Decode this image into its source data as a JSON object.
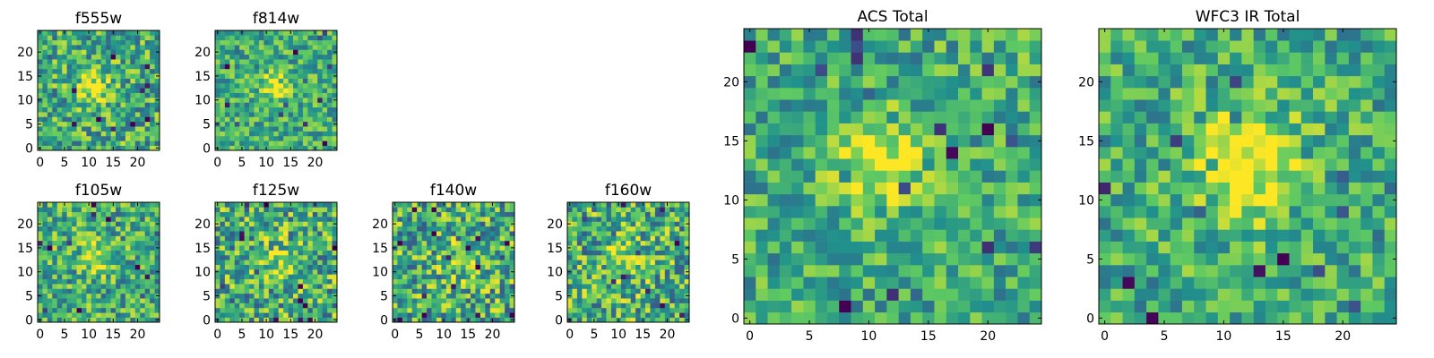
{
  "colormap": {
    "name": "viridis",
    "stops": [
      "#440154",
      "#3b528b",
      "#21918c",
      "#5ec962",
      "#fde725"
    ]
  },
  "chart_data": [
    {
      "type": "heatmap",
      "title": "f555w",
      "xlim": [
        0,
        24
      ],
      "ylim": [
        0,
        24
      ],
      "xticks": [
        "0",
        "5",
        "10",
        "15",
        "20"
      ],
      "yticks": [
        "0",
        "5",
        "10",
        "15",
        "20"
      ],
      "grid": false,
      "source_size": 25,
      "peak_center": [
        11,
        13
      ],
      "peak_sigma": 2.5,
      "peak_strength": 0.3,
      "noise_level": 0.3
    },
    {
      "type": "heatmap",
      "title": "f814w",
      "xlim": [
        0,
        24
      ],
      "ylim": [
        0,
        24
      ],
      "xticks": [
        "0",
        "5",
        "10",
        "15",
        "20"
      ],
      "yticks": [
        "0",
        "5",
        "10",
        "15",
        "20"
      ],
      "grid": false,
      "source_size": 25,
      "peak_center": [
        12,
        13
      ],
      "peak_sigma": 2.0,
      "peak_strength": 0.4,
      "noise_level": 0.25
    },
    {
      "type": "heatmap",
      "title": "f105w",
      "xlim": [
        0,
        24
      ],
      "ylim": [
        0,
        24
      ],
      "xticks": [
        "0",
        "5",
        "10",
        "15",
        "20"
      ],
      "yticks": [
        "0",
        "5",
        "10",
        "15",
        "20"
      ],
      "grid": false,
      "source_size": 25,
      "peak_center": [
        12,
        13
      ],
      "peak_sigma": 2.5,
      "peak_strength": 0.3,
      "noise_level": 0.3
    },
    {
      "type": "heatmap",
      "title": "f125w",
      "xlim": [
        0,
        24
      ],
      "ylim": [
        0,
        24
      ],
      "xticks": [
        "0",
        "5",
        "10",
        "15",
        "20"
      ],
      "yticks": [
        "0",
        "5",
        "10",
        "15",
        "20"
      ],
      "grid": false,
      "source_size": 25,
      "peak_center": [
        13,
        12
      ],
      "peak_sigma": 3.0,
      "peak_strength": 0.2,
      "noise_level": 0.35
    },
    {
      "type": "heatmap",
      "title": "f140w",
      "xlim": [
        0,
        24
      ],
      "ylim": [
        0,
        24
      ],
      "xticks": [
        "0",
        "5",
        "10",
        "15",
        "20"
      ],
      "yticks": [
        "0",
        "5",
        "10",
        "15",
        "20"
      ],
      "grid": false,
      "source_size": 25,
      "peak_center": [
        13,
        12
      ],
      "peak_sigma": 3.0,
      "peak_strength": 0.2,
      "noise_level": 0.35
    },
    {
      "type": "heatmap",
      "title": "f160w",
      "xlim": [
        0,
        24
      ],
      "ylim": [
        0,
        24
      ],
      "xticks": [
        "0",
        "5",
        "10",
        "15",
        "20"
      ],
      "yticks": [
        "0",
        "5",
        "10",
        "15",
        "20"
      ],
      "grid": false,
      "source_size": 25,
      "peak_center": [
        12,
        12
      ],
      "peak_sigma": 3.0,
      "peak_strength": 0.3,
      "noise_level": 0.35
    },
    {
      "type": "heatmap",
      "title": "ACS Total",
      "xlim": [
        0,
        24
      ],
      "ylim": [
        0,
        24
      ],
      "xticks": [
        "0",
        "5",
        "10",
        "15",
        "20"
      ],
      "yticks": [
        "0",
        "5",
        "10",
        "15",
        "20"
      ],
      "grid": false,
      "source_size": 25,
      "peak_center": [
        11,
        13
      ],
      "peak_sigma": 2.5,
      "peak_strength": 0.4,
      "noise_level": 0.25
    },
    {
      "type": "heatmap",
      "title": "WFC3 IR Total",
      "xlim": [
        0,
        24
      ],
      "ylim": [
        0,
        24
      ],
      "xticks": [
        "0",
        "5",
        "10",
        "15",
        "20"
      ],
      "yticks": [
        "0",
        "5",
        "10",
        "15",
        "20"
      ],
      "grid": false,
      "source_size": 25,
      "peak_center": [
        12,
        13
      ],
      "peak_sigma": 3.0,
      "peak_strength": 0.45,
      "noise_level": 0.25
    }
  ]
}
